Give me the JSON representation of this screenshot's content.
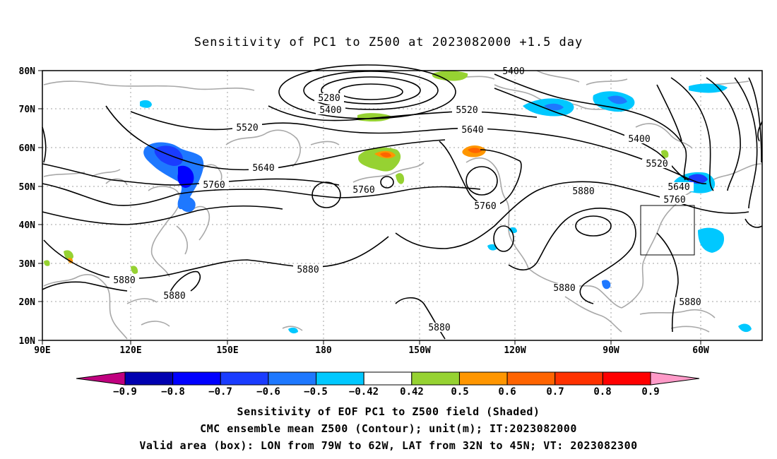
{
  "title": "Sensitivity of PC1 to Z500 at 2023082000 +1.5 day",
  "map": {
    "lat_labels": [
      "80N",
      "70N",
      "60N",
      "50N",
      "40N",
      "30N",
      "20N",
      "10N"
    ],
    "lon_labels": [
      "90E",
      "120E",
      "150E",
      "180",
      "150W",
      "120W",
      "90W",
      "60W"
    ],
    "contour_labels": [
      "5400",
      "5280",
      "5400",
      "5520",
      "5520",
      "5640",
      "5640",
      "5760",
      "5760",
      "5880",
      "5880",
      "5880",
      "5880",
      "5880",
      "5880",
      "5880",
      "5400",
      "5520",
      "5640",
      "5760",
      "5760"
    ],
    "box_label": "Valid area box"
  },
  "colorbar": {
    "labels": [
      "−0.9",
      "−0.8",
      "−0.7",
      "−0.6",
      "−0.5",
      "−0.42",
      "0.42",
      "0.5",
      "0.6",
      "0.7",
      "0.8",
      "0.9"
    ],
    "colors": [
      "#c0007f",
      "#0000b0",
      "#0000ff",
      "#1a3cff",
      "#1e78ff",
      "#00c8ff",
      "#ffffff",
      "#96d232",
      "#ff9600",
      "#ff6400",
      "#ff3200",
      "#ff0000",
      "#ff9ac8"
    ]
  },
  "captions": [
    "Sensitivity of EOF PC1 to Z500 field (Shaded)",
    "CMC ensemble mean Z500 (Contour); unit(m); IT:2023082000",
    "Valid area (box): LON from 79W to 62W, LAT from 32N to 45N; VT: 2023082300"
  ]
}
